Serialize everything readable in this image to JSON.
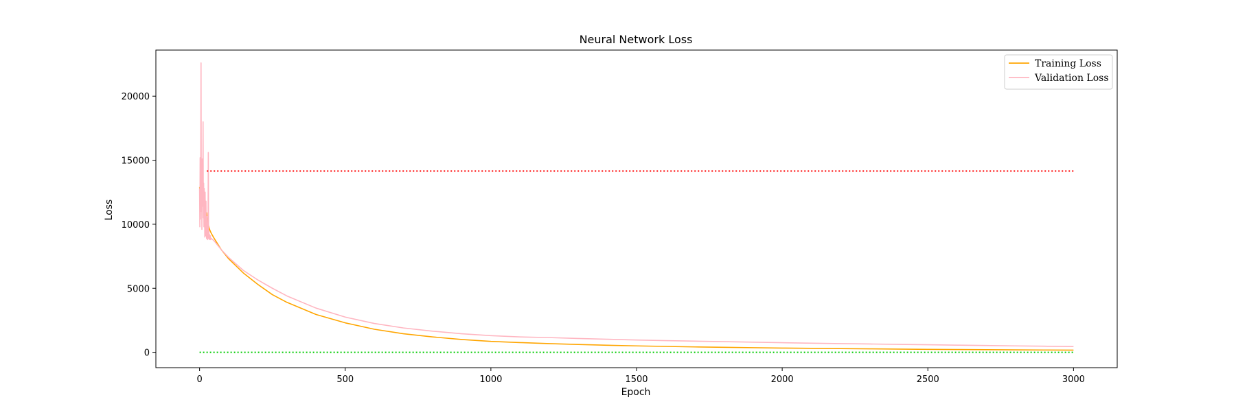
{
  "chart_data": {
    "type": "line",
    "title": "Neural Network Loss",
    "xlabel": "Epoch",
    "ylabel": "Loss",
    "xlim": [
      -150,
      3150
    ],
    "ylim": [
      -1200,
      23600
    ],
    "xticks": [
      0,
      500,
      1000,
      1500,
      2000,
      2500,
      3000
    ],
    "yticks": [
      0,
      5000,
      10000,
      15000,
      20000
    ],
    "grid": false,
    "legend_position": "top-right",
    "series": [
      {
        "name": "Training Loss",
        "color": "#ffa500",
        "style": "solid",
        "x": [
          0,
          3,
          6,
          9,
          12,
          15,
          18,
          21,
          24,
          27,
          30,
          33,
          36,
          40,
          50,
          75,
          100,
          150,
          200,
          250,
          300,
          400,
          500,
          600,
          700,
          800,
          900,
          1000,
          1100,
          1200,
          1300,
          1400,
          1500,
          1600,
          1700,
          1800,
          1900,
          2000,
          2100,
          2200,
          2300,
          2400,
          2500,
          2600,
          2700,
          2800,
          2900,
          3000
        ],
        "y": [
          12900,
          12300,
          12600,
          11800,
          12200,
          11100,
          11600,
          10700,
          10900,
          10200,
          10000,
          9700,
          9500,
          9300,
          8900,
          8000,
          7300,
          6200,
          5300,
          4500,
          3900,
          2950,
          2300,
          1800,
          1450,
          1200,
          1000,
          850,
          760,
          680,
          610,
          550,
          500,
          460,
          420,
          390,
          360,
          330,
          310,
          290,
          270,
          250,
          230,
          215,
          200,
          190,
          180,
          170
        ]
      },
      {
        "name": "Validation Loss",
        "color": "#ffb6c1",
        "style": "solid",
        "x": [
          0,
          1,
          2,
          3,
          4,
          5,
          6,
          7,
          8,
          9,
          10,
          11,
          12,
          13,
          14,
          15,
          16,
          17,
          18,
          19,
          20,
          21,
          22,
          23,
          24,
          25,
          26,
          27,
          28,
          29,
          30,
          31,
          32,
          33,
          34,
          35,
          36,
          37,
          38,
          40,
          50,
          75,
          100,
          150,
          200,
          250,
          300,
          400,
          500,
          600,
          700,
          800,
          900,
          1000,
          1100,
          1200,
          1300,
          1400,
          1500,
          1600,
          1700,
          1800,
          1900,
          2000,
          2100,
          2200,
          2300,
          2400,
          2500,
          2600,
          2700,
          2800,
          2900,
          3000
        ],
        "y": [
          12800,
          9800,
          15200,
          10400,
          13600,
          22600,
          11000,
          14800,
          9600,
          15100,
          12200,
          11400,
          18000,
          10500,
          13200,
          9800,
          12800,
          11000,
          9000,
          12500,
          10300,
          9100,
          11800,
          9500,
          8900,
          10600,
          9300,
          8800,
          9900,
          9000,
          15600,
          8900,
          9500,
          8800,
          9200,
          8900,
          8850,
          9100,
          8800,
          8900,
          8700,
          8000,
          7400,
          6400,
          5650,
          5000,
          4400,
          3450,
          2750,
          2250,
          1900,
          1650,
          1450,
          1300,
          1200,
          1150,
          1080,
          1020,
          960,
          910,
          870,
          830,
          790,
          750,
          710,
          680,
          650,
          620,
          590,
          560,
          530,
          500,
          475,
          450
        ]
      },
      {
        "name": "",
        "color": "#ff0000",
        "style": "dotted",
        "x": [
          25,
          3000
        ],
        "y": [
          14150,
          14150
        ]
      },
      {
        "name": "",
        "color": "#00cc00",
        "style": "dotted",
        "x": [
          0,
          3000
        ],
        "y": [
          0,
          0
        ]
      }
    ]
  }
}
